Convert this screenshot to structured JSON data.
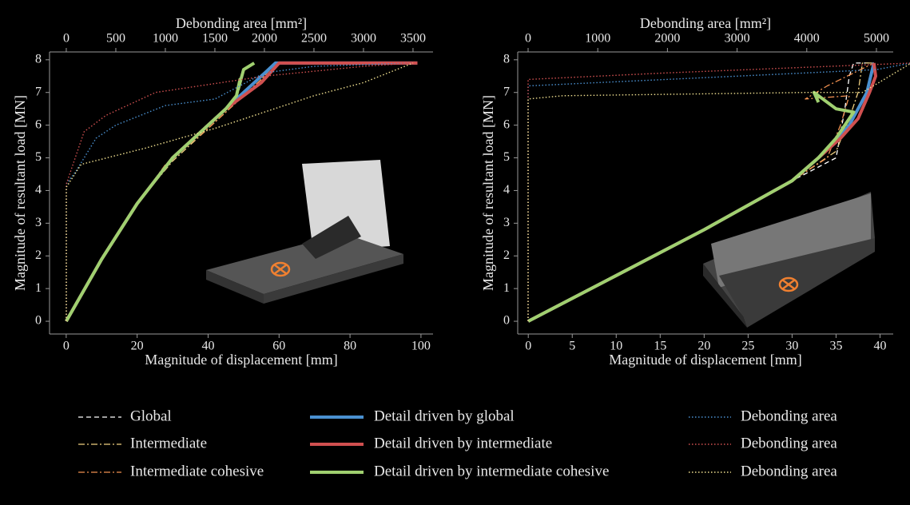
{
  "chart_data": [
    {
      "type": "line",
      "xlabel": "Magnitude of displacement [mm]",
      "ylabel": "Magnitude of resultant load [MN]",
      "x2label": "Debonding area [mm²]",
      "xlim": [
        -4.7,
        103.4
      ],
      "xticks": [
        0,
        20,
        40,
        60,
        80,
        100
      ],
      "x2lim": [
        -169,
        3702
      ],
      "x2ticks": [
        0,
        500,
        1000,
        1500,
        2000,
        2500,
        3000,
        3500
      ],
      "ylim": [
        -0.39,
        8.24
      ],
      "yticks": [
        0,
        1,
        2,
        3,
        4,
        5,
        6,
        7,
        8
      ],
      "series": [
        {
          "name": "Global",
          "color": "#ffffff",
          "style": "dashed",
          "x": [
            0,
            10,
            20,
            30,
            40,
            45,
            50,
            55,
            59,
            99
          ],
          "values": [
            0,
            1.9,
            3.6,
            5.0,
            6.0,
            6.5,
            7.0,
            7.5,
            7.9,
            7.9
          ]
        },
        {
          "name": "Intermediate",
          "color": "#f0d080",
          "style": "dashdot",
          "x": [
            0,
            10,
            20,
            30,
            40,
            45,
            50,
            55,
            59,
            99
          ],
          "values": [
            0,
            1.9,
            3.6,
            4.9,
            5.9,
            6.4,
            6.9,
            7.4,
            7.9,
            7.9
          ]
        },
        {
          "name": "Intermediate cohesive",
          "color": "#f09050",
          "style": "dashdot",
          "x": [
            0,
            10,
            20,
            28,
            40,
            45,
            50,
            55,
            59,
            99
          ],
          "values": [
            0,
            1.9,
            3.6,
            4.8,
            5.9,
            6.4,
            6.9,
            7.4,
            7.9,
            7.9
          ]
        },
        {
          "name": "Detail driven by global",
          "color": "#4a90d0",
          "style": "solid",
          "x": [
            0,
            10,
            20,
            30,
            40,
            45,
            50,
            55,
            59,
            99
          ],
          "values": [
            0,
            1.9,
            3.6,
            5.0,
            6.0,
            6.5,
            7.0,
            7.5,
            7.9,
            7.9
          ]
        },
        {
          "name": "Detail driven by intermediate",
          "color": "#d05050",
          "style": "solid",
          "x": [
            0,
            10,
            20,
            30,
            40,
            45,
            50,
            55,
            60,
            99
          ],
          "values": [
            0,
            1.9,
            3.6,
            5.0,
            6.0,
            6.5,
            6.9,
            7.3,
            7.9,
            7.9
          ]
        },
        {
          "name": "Detail driven by intermediate cohesive",
          "color": "#a0d070",
          "style": "solid",
          "x": [
            0,
            10,
            20,
            30,
            40,
            45,
            48,
            49,
            48.5,
            50,
            53
          ],
          "values": [
            0,
            1.9,
            3.6,
            5.0,
            6.0,
            6.5,
            6.9,
            7.4,
            7.1,
            7.7,
            7.9
          ]
        },
        {
          "name": "Debonding area",
          "color": "#4a90d0",
          "style": "dotted",
          "axis": "x2",
          "x": [
            0,
            0,
            100,
            300,
            500,
            1000,
            1500,
            2000,
            2500,
            3500
          ],
          "values": [
            0,
            4.2,
            4.6,
            5.6,
            6.0,
            6.6,
            6.8,
            7.6,
            7.8,
            7.9
          ]
        },
        {
          "name": "Debonding area",
          "color": "#d05050",
          "style": "dotted",
          "axis": "x2",
          "x": [
            0,
            0,
            180,
            400,
            900,
            2000,
            3000,
            3500
          ],
          "values": [
            0,
            4.2,
            5.8,
            6.3,
            7.0,
            7.5,
            7.8,
            7.9
          ]
        },
        {
          "name": "Debonding area",
          "color": "#f0e090",
          "style": "dotted",
          "axis": "x2",
          "x": [
            0,
            0,
            150,
            800,
            1500,
            2500,
            3000,
            3500
          ],
          "values": [
            0,
            4.1,
            4.8,
            5.3,
            5.9,
            6.9,
            7.3,
            7.9
          ]
        }
      ]
    },
    {
      "type": "line",
      "xlabel": "Magnitude of displacement [mm]",
      "ylabel": "Magnitude of resultant load [MN]",
      "x2label": "Debonding area [mm²]",
      "xlim": [
        -1.2,
        41.5
      ],
      "xticks": [
        0,
        5,
        10,
        15,
        20,
        25,
        30,
        35,
        40
      ],
      "x2lim": [
        -149,
        5241
      ],
      "x2ticks": [
        0,
        1000,
        2000,
        3000,
        4000,
        5000
      ],
      "ylim": [
        -0.39,
        8.24
      ],
      "yticks": [
        0,
        1,
        2,
        3,
        4,
        5,
        6,
        7,
        8
      ],
      "series": [
        {
          "name": "Global",
          "color": "#ffffff",
          "style": "dashed",
          "x": [
            0,
            10,
            20,
            30,
            35,
            36,
            36.5,
            37,
            39.3
          ],
          "values": [
            0,
            1.4,
            2.8,
            4.3,
            5.0,
            6.5,
            7.5,
            7.9,
            7.9
          ]
        },
        {
          "name": "Intermediate",
          "color": "#f0d080",
          "style": "dashdot",
          "x": [
            0,
            10,
            20,
            30,
            35,
            36.5,
            37.5,
            38,
            39.3
          ],
          "values": [
            0,
            1.4,
            2.8,
            4.3,
            5.2,
            6.2,
            7.0,
            7.9,
            7.9
          ]
        },
        {
          "name": "Intermediate cohesive",
          "color": "#f09050",
          "style": "dashdot",
          "x": [
            0,
            10,
            20,
            30,
            34,
            35.5,
            36.5,
            31.5,
            34,
            39.3
          ],
          "values": [
            0,
            1.4,
            2.8,
            4.3,
            5.0,
            6.0,
            6.9,
            6.8,
            7.2,
            7.9
          ]
        },
        {
          "name": "Detail driven by global",
          "color": "#4a90d0",
          "style": "solid",
          "x": [
            0,
            10,
            20,
            30,
            33,
            35,
            36.5,
            37.5,
            38.5,
            39.3
          ],
          "values": [
            0,
            1.4,
            2.8,
            4.3,
            5.0,
            5.5,
            6.0,
            6.5,
            7.0,
            7.9
          ]
        },
        {
          "name": "Detail driven by intermediate",
          "color": "#d05050",
          "style": "solid",
          "x": [
            0,
            10,
            20,
            30,
            33,
            35.5,
            37.5,
            38.8,
            39.5,
            39.3
          ],
          "values": [
            0,
            1.4,
            2.8,
            4.3,
            5.0,
            5.6,
            6.2,
            7.0,
            7.5,
            7.9
          ]
        },
        {
          "name": "Detail driven by intermediate cohesive",
          "color": "#a0d070",
          "style": "solid",
          "x": [
            0,
            10,
            20,
            30,
            33,
            35,
            37,
            35,
            33,
            32.5,
            33
          ],
          "values": [
            0,
            1.4,
            2.8,
            4.3,
            5.0,
            5.6,
            6.4,
            6.5,
            6.9,
            7.0,
            6.7
          ]
        },
        {
          "name": "Debonding area",
          "color": "#4a90d0",
          "style": "dotted",
          "axis": "x2",
          "x": [
            0,
            0,
            1000,
            3000,
            5000,
            5500
          ],
          "values": [
            0,
            7.2,
            7.3,
            7.5,
            7.7,
            7.9
          ]
        },
        {
          "name": "Debonding area",
          "color": "#d05050",
          "style": "dotted",
          "axis": "x2",
          "x": [
            0,
            0,
            2000,
            5500
          ],
          "values": [
            0,
            7.4,
            7.6,
            7.9
          ]
        },
        {
          "name": "Debonding area",
          "color": "#f0e090",
          "style": "dotted",
          "axis": "x2",
          "x": [
            0,
            0,
            500,
            4000,
            4800,
            5500
          ],
          "values": [
            0,
            6.8,
            6.9,
            7.0,
            7.0,
            7.9
          ]
        }
      ]
    }
  ]
}
